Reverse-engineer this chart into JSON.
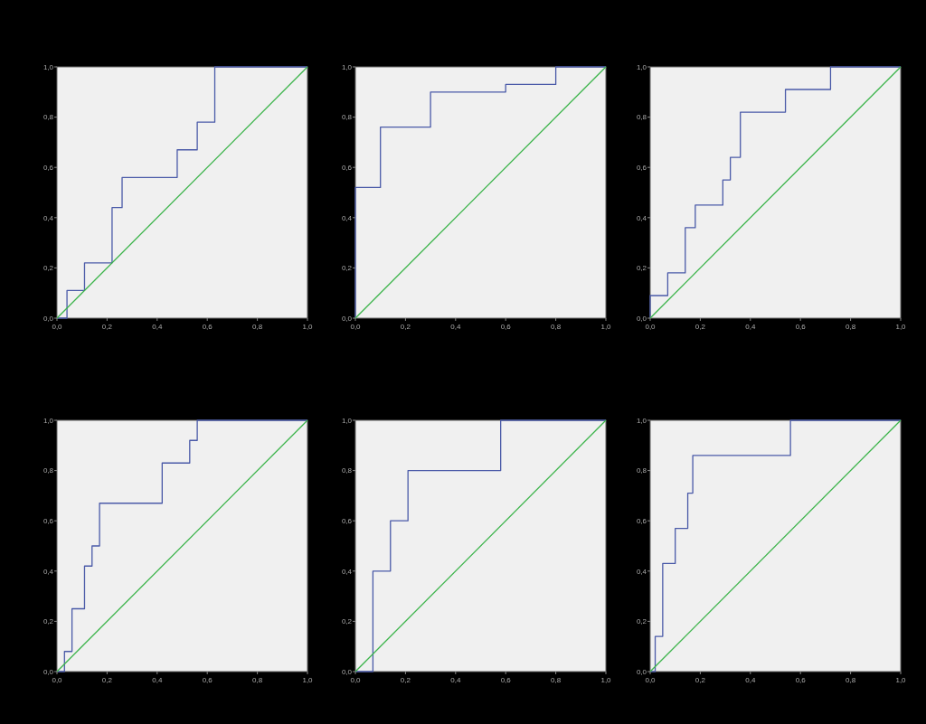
{
  "chart_data": [
    {
      "type": "step",
      "xlim": [
        0,
        1
      ],
      "ylim": [
        0,
        1
      ],
      "xticks": [
        {
          "value": 0,
          "label": "0,0"
        },
        {
          "value": 0.2,
          "label": "0,2"
        },
        {
          "value": 0.4,
          "label": "0,4"
        },
        {
          "value": 0.6,
          "label": "0,6"
        },
        {
          "value": 0.8,
          "label": "0,8"
        },
        {
          "value": 1,
          "label": "1,0"
        }
      ],
      "yticks": [
        {
          "value": 0,
          "label": "0,0"
        },
        {
          "value": 0.2,
          "label": "0,2"
        },
        {
          "value": 0.4,
          "label": "0,4"
        },
        {
          "value": 0.6,
          "label": "0,6"
        },
        {
          "value": 0.8,
          "label": "0,8"
        },
        {
          "value": 1,
          "label": "1,0"
        }
      ],
      "series": [
        {
          "type": "step",
          "color": "#4a5aa8",
          "x": [
            0,
            0.04,
            0.11,
            0.22,
            0.26,
            0.48,
            0.56,
            0.63,
            1
          ],
          "values": [
            0,
            0.11,
            0.22,
            0.44,
            0.56,
            0.67,
            0.78,
            1,
            1
          ]
        },
        {
          "type": "line",
          "color": "#3cb44b",
          "x": [
            0,
            1
          ],
          "values": [
            0,
            1
          ]
        }
      ]
    },
    {
      "type": "step",
      "xlim": [
        0,
        1
      ],
      "ylim": [
        0,
        1
      ],
      "xticks": [
        {
          "value": 0,
          "label": "0,0"
        },
        {
          "value": 0.2,
          "label": "0,2"
        },
        {
          "value": 0.4,
          "label": "0,4"
        },
        {
          "value": 0.6,
          "label": "0,6"
        },
        {
          "value": 0.8,
          "label": "0,8"
        },
        {
          "value": 1,
          "label": "1,0"
        }
      ],
      "yticks": [
        {
          "value": 0,
          "label": "0,0"
        },
        {
          "value": 0.2,
          "label": "0,2"
        },
        {
          "value": 0.4,
          "label": "0,4"
        },
        {
          "value": 0.6,
          "label": "0,6"
        },
        {
          "value": 0.8,
          "label": "0,8"
        },
        {
          "value": 1,
          "label": "1,0"
        }
      ],
      "series": [
        {
          "type": "step",
          "color": "#4a5aa8",
          "x": [
            0,
            0,
            0.1,
            0.3,
            0.6,
            0.8,
            1
          ],
          "values": [
            0,
            0.52,
            0.76,
            0.9,
            0.93,
            1,
            1
          ]
        },
        {
          "type": "line",
          "color": "#3cb44b",
          "x": [
            0,
            1
          ],
          "values": [
            0,
            1
          ]
        }
      ]
    },
    {
      "type": "step",
      "xlim": [
        0,
        1
      ],
      "ylim": [
        0,
        1
      ],
      "xticks": [
        {
          "value": 0,
          "label": "0,0"
        },
        {
          "value": 0.2,
          "label": "0,2"
        },
        {
          "value": 0.4,
          "label": "0,4"
        },
        {
          "value": 0.6,
          "label": "0,6"
        },
        {
          "value": 0.8,
          "label": "0,8"
        },
        {
          "value": 1,
          "label": "1,0"
        }
      ],
      "yticks": [
        {
          "value": 0,
          "label": "0,0"
        },
        {
          "value": 0.2,
          "label": "0,2"
        },
        {
          "value": 0.4,
          "label": "0,4"
        },
        {
          "value": 0.6,
          "label": "0,6"
        },
        {
          "value": 0.8,
          "label": "0,8"
        },
        {
          "value": 1,
          "label": "1,0"
        }
      ],
      "series": [
        {
          "type": "step",
          "color": "#4a5aa8",
          "x": [
            0,
            0,
            0.07,
            0.14,
            0.18,
            0.29,
            0.32,
            0.36,
            0.54,
            0.72,
            1
          ],
          "values": [
            0,
            0.09,
            0.18,
            0.36,
            0.45,
            0.55,
            0.64,
            0.82,
            0.91,
            1,
            1
          ]
        },
        {
          "type": "line",
          "color": "#3cb44b",
          "x": [
            0,
            1
          ],
          "values": [
            0,
            1
          ]
        }
      ]
    },
    {
      "type": "step",
      "xlim": [
        0,
        1
      ],
      "ylim": [
        0,
        1
      ],
      "xticks": [
        {
          "value": 0,
          "label": "0,0"
        },
        {
          "value": 0.2,
          "label": "0,2"
        },
        {
          "value": 0.4,
          "label": "0,4"
        },
        {
          "value": 0.6,
          "label": "0,6"
        },
        {
          "value": 0.8,
          "label": "0,8"
        },
        {
          "value": 1,
          "label": "1,0"
        }
      ],
      "yticks": [
        {
          "value": 0,
          "label": "0,0"
        },
        {
          "value": 0.2,
          "label": "0,2"
        },
        {
          "value": 0.4,
          "label": "0,4"
        },
        {
          "value": 0.6,
          "label": "0,6"
        },
        {
          "value": 0.8,
          "label": "0,8"
        },
        {
          "value": 1,
          "label": "1,0"
        }
      ],
      "series": [
        {
          "type": "step",
          "color": "#4a5aa8",
          "x": [
            0,
            0.03,
            0.06,
            0.11,
            0.14,
            0.17,
            0.42,
            0.53,
            0.56,
            1
          ],
          "values": [
            0,
            0.08,
            0.25,
            0.42,
            0.5,
            0.67,
            0.83,
            0.92,
            1,
            1
          ]
        },
        {
          "type": "line",
          "color": "#3cb44b",
          "x": [
            0,
            1
          ],
          "values": [
            0,
            1
          ]
        }
      ]
    },
    {
      "type": "step",
      "xlim": [
        0,
        1
      ],
      "ylim": [
        0,
        1
      ],
      "xticks": [
        {
          "value": 0,
          "label": "0,0"
        },
        {
          "value": 0.2,
          "label": "0,2"
        },
        {
          "value": 0.4,
          "label": "0,4"
        },
        {
          "value": 0.6,
          "label": "0,6"
        },
        {
          "value": 0.8,
          "label": "0,8"
        },
        {
          "value": 1,
          "label": "1,0"
        }
      ],
      "yticks": [
        {
          "value": 0,
          "label": "0,0"
        },
        {
          "value": 0.2,
          "label": "0,2"
        },
        {
          "value": 0.4,
          "label": "0,4"
        },
        {
          "value": 0.6,
          "label": "0,6"
        },
        {
          "value": 0.8,
          "label": "0,8"
        },
        {
          "value": 1,
          "label": "1,0"
        }
      ],
      "series": [
        {
          "type": "step",
          "color": "#4a5aa8",
          "x": [
            0,
            0.07,
            0.14,
            0.21,
            0.58,
            1
          ],
          "values": [
            0,
            0.4,
            0.6,
            0.8,
            1,
            1
          ]
        },
        {
          "type": "line",
          "color": "#3cb44b",
          "x": [
            0,
            1
          ],
          "values": [
            0,
            1
          ]
        }
      ]
    },
    {
      "type": "step",
      "xlim": [
        0,
        1
      ],
      "ylim": [
        0,
        1
      ],
      "xticks": [
        {
          "value": 0,
          "label": "0,0"
        },
        {
          "value": 0.2,
          "label": "0,2"
        },
        {
          "value": 0.4,
          "label": "0,4"
        },
        {
          "value": 0.6,
          "label": "0,6"
        },
        {
          "value": 0.8,
          "label": "0,8"
        },
        {
          "value": 1,
          "label": "1,0"
        }
      ],
      "yticks": [
        {
          "value": 0,
          "label": "0,0"
        },
        {
          "value": 0.2,
          "label": "0,2"
        },
        {
          "value": 0.4,
          "label": "0,4"
        },
        {
          "value": 0.6,
          "label": "0,6"
        },
        {
          "value": 0.8,
          "label": "0,8"
        },
        {
          "value": 1,
          "label": "1,0"
        }
      ],
      "series": [
        {
          "type": "step",
          "color": "#4a5aa8",
          "x": [
            0,
            0.02,
            0.05,
            0.1,
            0.15,
            0.17,
            0.56,
            1
          ],
          "values": [
            0,
            0.14,
            0.43,
            0.57,
            0.71,
            0.86,
            1,
            1
          ]
        },
        {
          "type": "line",
          "color": "#3cb44b",
          "x": [
            0,
            1
          ],
          "values": [
            0,
            1
          ]
        }
      ]
    }
  ]
}
